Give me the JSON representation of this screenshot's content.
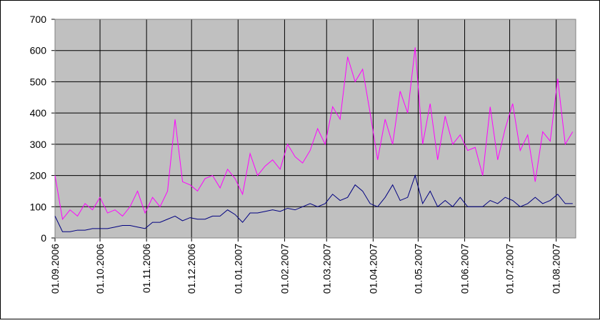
{
  "chart_data": {
    "type": "line",
    "x": [
      "01.09.2006",
      "06.09.2006",
      "11.09.2006",
      "16.09.2006",
      "21.09.2006",
      "26.09.2006",
      "01.10.2006",
      "06.10.2006",
      "11.10.2006",
      "16.10.2006",
      "21.10.2006",
      "26.10.2006",
      "31.10.2006",
      "05.11.2006",
      "10.11.2006",
      "15.11.2006",
      "20.11.2006",
      "25.11.2006",
      "30.11.2006",
      "05.12.2006",
      "10.12.2006",
      "15.12.2006",
      "20.12.2006",
      "25.12.2006",
      "30.12.2006",
      "04.01.2007",
      "09.01.2007",
      "14.01.2007",
      "19.01.2007",
      "24.01.2007",
      "29.01.2007",
      "03.02.2007",
      "08.02.2007",
      "13.02.2007",
      "18.02.2007",
      "23.02.2007",
      "28.02.2007",
      "05.03.2007",
      "10.03.2007",
      "15.03.2007",
      "20.03.2007",
      "25.03.2007",
      "30.03.2007",
      "04.04.2007",
      "09.04.2007",
      "14.04.2007",
      "19.04.2007",
      "24.04.2007",
      "29.04.2007",
      "04.05.2007",
      "09.05.2007",
      "14.05.2007",
      "19.05.2007",
      "24.05.2007",
      "29.05.2007",
      "03.06.2007",
      "08.06.2007",
      "13.06.2007",
      "18.06.2007",
      "23.06.2007",
      "28.06.2007",
      "03.07.2007",
      "08.07.2007",
      "13.07.2007",
      "18.07.2007",
      "23.07.2007",
      "28.07.2007",
      "02.08.2007",
      "07.08.2007",
      "12.08.2007"
    ],
    "series": [
      {
        "color": "#ff00ff",
        "values": [
          200,
          60,
          90,
          70,
          110,
          90,
          130,
          80,
          90,
          70,
          100,
          150,
          80,
          130,
          100,
          150,
          380,
          180,
          170,
          150,
          190,
          200,
          160,
          220,
          190,
          140,
          270,
          200,
          230,
          250,
          220,
          300,
          260,
          240,
          280,
          350,
          300,
          420,
          380,
          580,
          500,
          540,
          400,
          250,
          380,
          300,
          470,
          400,
          610,
          300,
          430,
          250,
          390,
          300,
          330,
          280,
          290,
          200,
          420,
          250,
          350,
          430,
          280,
          330,
          180,
          340,
          310,
          510,
          300,
          340
        ]
      },
      {
        "color": "#000080",
        "values": [
          70,
          20,
          20,
          25,
          25,
          30,
          30,
          30,
          35,
          40,
          40,
          35,
          30,
          50,
          50,
          60,
          70,
          55,
          65,
          60,
          60,
          70,
          70,
          90,
          75,
          50,
          80,
          80,
          85,
          90,
          85,
          95,
          90,
          100,
          110,
          100,
          110,
          140,
          120,
          130,
          170,
          150,
          110,
          100,
          130,
          170,
          120,
          130,
          200,
          110,
          150,
          100,
          120,
          100,
          130,
          100,
          100,
          100,
          120,
          110,
          130,
          120,
          100,
          110,
          130,
          110,
          120,
          140,
          110,
          110
        ]
      }
    ],
    "xlim": [
      "01.09.2006",
      "14.08.2007"
    ],
    "xticks": [
      "01.09.2006",
      "01.10.2006",
      "01.11.2006",
      "01.12.2006",
      "01.01.2007",
      "01.02.2007",
      "01.03.2007",
      "01.04.2007",
      "01.05.2007",
      "01.06.2007",
      "01.07.2007",
      "01.08.2007"
    ],
    "ylim": [
      0,
      700
    ],
    "yticks": [
      0,
      100,
      200,
      300,
      400,
      500,
      600,
      700
    ],
    "grid": true,
    "plot_background": "#c0c0c0"
  }
}
